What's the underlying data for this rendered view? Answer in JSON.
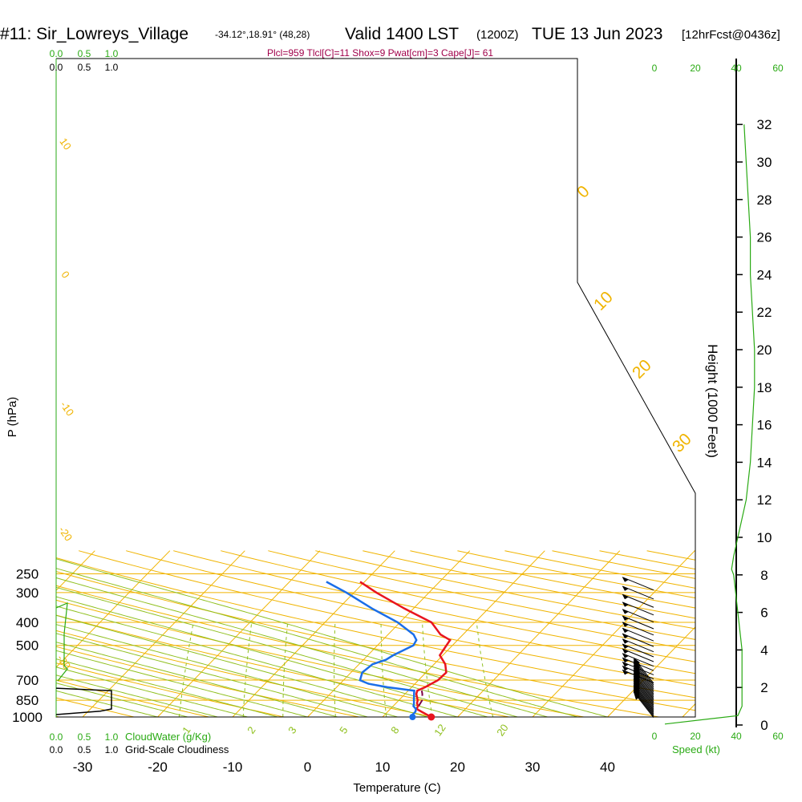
{
  "header": {
    "station": "#11: Sir_Lowreys_Village",
    "coords": "-34.12°,18.91° (48,28)",
    "valid": "Valid 1400 LST",
    "valid_z": "(1200Z)",
    "date": "TUE 13 Jun 2023",
    "forecast": "[12hrFcst@0436z]",
    "params": "Plcl=959 Tlcl[C]=11 Shox=9 Pwat[cm]=3 Cape[J]= 61"
  },
  "colors": {
    "isotherm": "#f0b400",
    "dry_adiabat": "#f0b400",
    "moist_adiabat": "#90c020",
    "mixing_ratio": "#90c020",
    "temperature": "#e8141e",
    "dewpoint": "#1a6ee8",
    "parcel": "#7a0040",
    "green_text": "#2aaa14",
    "params_text": "#a0004a"
  },
  "chart_data": {
    "type": "line",
    "xlabel": "Temperature (C)",
    "ylabel": "P (hPa)",
    "y2label": "Height (1000 Feet)",
    "x_ticks": [
      "-30",
      "-20",
      "-10",
      "0",
      "10",
      "20",
      "30",
      "40"
    ],
    "p_ticks": [
      "250",
      "300",
      "400",
      "500",
      "700",
      "850",
      "1000"
    ],
    "height_ticks": [
      "0",
      "2",
      "4",
      "6",
      "8",
      "10",
      "12",
      "14",
      "16",
      "18",
      "20",
      "22",
      "24",
      "26",
      "28",
      "30",
      "32"
    ],
    "xlim": [
      -33,
      36
    ],
    "plim": [
      1000,
      250
    ],
    "isotherm_labels": [
      "0",
      "10",
      "20",
      "30"
    ],
    "dry_adiabat_labels": [
      "10",
      "0",
      "-10",
      "-20",
      "-30"
    ],
    "mixing_ratio_labels": [
      "1",
      "2",
      "3",
      "5",
      "8",
      "12",
      "20"
    ],
    "series": [
      {
        "name": "Temperature",
        "p": [
          1000,
          975,
          950,
          925,
          900,
          875,
          850,
          800,
          775,
          750,
          700,
          650,
          600,
          550,
          500,
          475,
          450,
          400,
          350,
          300,
          270
        ],
        "t": [
          16.5,
          15.5,
          14.5,
          13.5,
          13.3,
          12.8,
          12.5,
          11.5,
          11.2,
          11.8,
          12.6,
          12.7,
          11.5,
          9.6,
          9.2,
          9.0,
          7.0,
          4.2,
          -1.2,
          -7.0,
          -10.6
        ]
      },
      {
        "name": "Dewpoint",
        "p": [
          1000,
          980,
          950,
          925,
          900,
          875,
          850,
          800,
          775,
          750,
          725,
          700,
          650,
          600,
          575,
          550,
          500,
          475,
          450,
          400,
          350,
          300,
          270
        ],
        "t": [
          14.0,
          13.7,
          13.7,
          13.4,
          12.7,
          12.4,
          12.0,
          11.2,
          10.8,
          6.8,
          3.8,
          2.2,
          1.5,
          1.8,
          3.0,
          3.4,
          4.8,
          4.5,
          3.4,
          -0.3,
          -5.5,
          -11.0,
          -15.1
        ]
      },
      {
        "name": "Parcel",
        "p": [
          900,
          850,
          800,
          775
        ],
        "t": [
          13.4,
          13.1,
          12.3,
          11.8
        ]
      }
    ],
    "cloudwater_axis": [
      "0.0",
      "0.5",
      "1.0"
    ],
    "cloudwater_label": "CloudWater (g/Kg)",
    "cloudiness_axis": [
      "0.0",
      "0.5",
      "1.0"
    ],
    "cloudiness_label": "Grid-Scale Cloudiness",
    "cloudiness_profile": {
      "p": [
        757,
        775,
        925,
        945,
        977
      ],
      "value": [
        0.0,
        1.0,
        1.0,
        0.8,
        0.0
      ]
    },
    "speed_axis": [
      "0",
      "20",
      "40",
      "60"
    ],
    "speed_label": "Speed (kt)",
    "wind_profile": {
      "height_kft": [
        0.05,
        0.5,
        1,
        1.5,
        2,
        3,
        4,
        5,
        6,
        7,
        8,
        8.3,
        9,
        10,
        11,
        12,
        14,
        16,
        18,
        20,
        22,
        24,
        26,
        28,
        30,
        32
      ],
      "speed_kt": [
        5,
        40,
        42,
        42,
        42,
        42,
        42,
        41,
        40,
        39,
        38,
        37,
        38,
        40,
        42,
        44,
        46,
        47,
        48,
        48,
        47,
        46,
        46,
        45,
        44,
        43
      ]
    }
  }
}
